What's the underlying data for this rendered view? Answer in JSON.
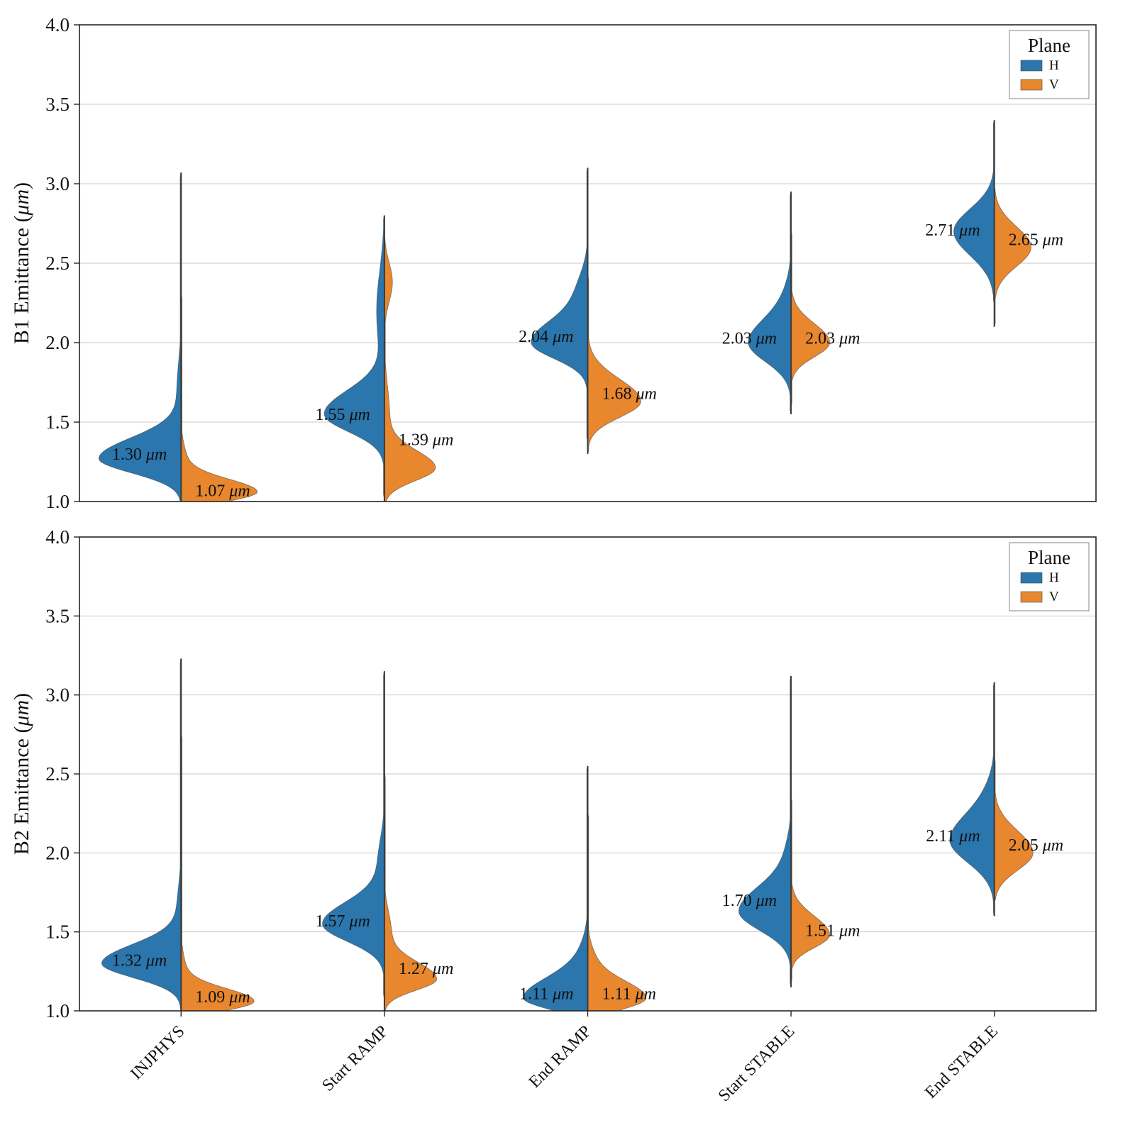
{
  "colors": {
    "H": "#2b76ad",
    "V": "#e8872e",
    "grid": "#c9c9c9",
    "axis": "#262626",
    "center_line": "#3a3a3a",
    "text": "#111111",
    "violin_edge": "#4a4a4a",
    "legend_border": "#9a9a9a"
  },
  "legend": {
    "title": "Plane",
    "entries": [
      {
        "label": "H",
        "color_key": "H"
      },
      {
        "label": "V",
        "color_key": "V"
      }
    ]
  },
  "chart_data": [
    {
      "type": "violin",
      "ylabel_prefix": "B1 Emittance (",
      "ylabel_unit": "μm",
      "ylabel_suffix": ")",
      "ylim": [
        1.0,
        4.0
      ],
      "yticks": [
        1.0,
        1.5,
        2.0,
        2.5,
        3.0,
        3.5,
        4.0
      ],
      "categories": [
        "INJPHYS",
        "Start RAMP",
        "End RAMP",
        "Start STABLE",
        "End STABLE"
      ],
      "violins": [
        {
          "category": "INJPHYS",
          "halves": [
            {
              "plane": "H",
              "label_value": "1.30",
              "label_unit": "μm",
              "mean": 1.3,
              "mode": 1.27,
              "sigma_low": 0.09,
              "sigma_high": 0.13,
              "min": 1.0,
              "max": 3.07,
              "width": 0.85,
              "bumps": [
                [
                  1.7,
                  0.18,
                  0.05
                ]
              ]
            },
            {
              "plane": "V",
              "label_value": "1.07",
              "label_unit": "μm",
              "mean": 1.07,
              "mode": 1.06,
              "sigma_low": 0.06,
              "sigma_high": 0.08,
              "min": 1.0,
              "max": 2.3,
              "width": 0.78,
              "bumps": [
                [
                  1.25,
                  0.1,
                  0.07
                ]
              ]
            }
          ]
        },
        {
          "category": "Start RAMP",
          "halves": [
            {
              "plane": "H",
              "label_value": "1.55",
              "label_unit": "μm",
              "mean": 1.55,
              "mode": 1.55,
              "sigma_low": 0.11,
              "sigma_high": 0.15,
              "min": 1.02,
              "max": 2.8,
              "width": 0.62,
              "bumps": [
                [
                  2.2,
                  0.25,
                  0.13
                ]
              ]
            },
            {
              "plane": "V",
              "label_value": "1.39",
              "label_unit": "μm",
              "mean": 1.39,
              "mode": 1.21,
              "sigma_low": 0.08,
              "sigma_high": 0.11,
              "min": 1.0,
              "max": 2.65,
              "width": 0.52,
              "bumps": [
                [
                  1.55,
                  0.18,
                  0.1
                ],
                [
                  2.38,
                  0.12,
                  0.16
                ]
              ]
            }
          ]
        },
        {
          "category": "End RAMP",
          "halves": [
            {
              "plane": "H",
              "label_value": "2.04",
              "label_unit": "μm",
              "mean": 2.04,
              "mode": 2.0,
              "sigma_low": 0.1,
              "sigma_high": 0.14,
              "min": 1.38,
              "max": 3.1,
              "width": 0.58,
              "bumps": [
                [
                  2.32,
                  0.13,
                  0.18
                ]
              ]
            },
            {
              "plane": "V",
              "label_value": "1.68",
              "label_unit": "μm",
              "mean": 1.68,
              "mode": 1.63,
              "sigma_low": 0.1,
              "sigma_high": 0.14,
              "min": 1.3,
              "max": 2.42,
              "width": 0.55,
              "bumps": []
            }
          ]
        },
        {
          "category": "Start STABLE",
          "halves": [
            {
              "plane": "H",
              "label_value": "2.03",
              "label_unit": "μm",
              "mean": 2.03,
              "mode": 2.0,
              "sigma_low": 0.12,
              "sigma_high": 0.15,
              "min": 1.55,
              "max": 2.95,
              "width": 0.44,
              "bumps": [
                [
                  2.3,
                  0.12,
                  0.1
                ]
              ]
            },
            {
              "plane": "V",
              "label_value": "2.03",
              "label_unit": "μm",
              "mean": 2.03,
              "mode": 2.0,
              "sigma_low": 0.09,
              "sigma_high": 0.12,
              "min": 1.6,
              "max": 2.7,
              "width": 0.4,
              "bumps": []
            }
          ]
        },
        {
          "category": "End STABLE",
          "halves": [
            {
              "plane": "H",
              "label_value": "2.71",
              "label_unit": "μm",
              "mean": 2.71,
              "mode": 2.7,
              "sigma_low": 0.15,
              "sigma_high": 0.14,
              "min": 2.25,
              "max": 3.4,
              "width": 0.42,
              "bumps": []
            },
            {
              "plane": "V",
              "label_value": "2.65",
              "label_unit": "μm",
              "mean": 2.65,
              "mode": 2.6,
              "sigma_low": 0.12,
              "sigma_high": 0.13,
              "min": 2.1,
              "max": 2.97,
              "width": 0.38,
              "bumps": []
            }
          ]
        }
      ]
    },
    {
      "type": "violin",
      "ylabel_prefix": "B2 Emittance (",
      "ylabel_unit": "μm",
      "ylabel_suffix": ")",
      "ylim": [
        1.0,
        4.0
      ],
      "yticks": [
        1.0,
        1.5,
        2.0,
        2.5,
        3.0,
        3.5,
        4.0
      ],
      "categories": [
        "INJPHYS",
        "Start RAMP",
        "End RAMP",
        "Start STABLE",
        "End STABLE"
      ],
      "violins": [
        {
          "category": "INJPHYS",
          "halves": [
            {
              "plane": "H",
              "label_value": "1.32",
              "label_unit": "μm",
              "mean": 1.32,
              "mode": 1.3,
              "sigma_low": 0.09,
              "sigma_high": 0.12,
              "min": 1.0,
              "max": 3.23,
              "width": 0.82,
              "bumps": [
                [
                  1.65,
                  0.15,
                  0.05
                ]
              ]
            },
            {
              "plane": "V",
              "label_value": "1.09",
              "label_unit": "μm",
              "mean": 1.09,
              "mode": 1.06,
              "sigma_low": 0.06,
              "sigma_high": 0.08,
              "min": 1.0,
              "max": 2.75,
              "width": 0.75,
              "bumps": [
                [
                  1.25,
                  0.1,
                  0.06
                ]
              ]
            }
          ]
        },
        {
          "category": "Start RAMP",
          "halves": [
            {
              "plane": "H",
              "label_value": "1.57",
              "label_unit": "μm",
              "mean": 1.57,
              "mode": 1.55,
              "sigma_low": 0.11,
              "sigma_high": 0.14,
              "min": 1.08,
              "max": 3.15,
              "width": 0.64,
              "bumps": [
                [
                  1.95,
                  0.15,
                  0.1
                ]
              ]
            },
            {
              "plane": "V",
              "label_value": "1.27",
              "label_unit": "μm",
              "mean": 1.27,
              "mode": 1.2,
              "sigma_low": 0.07,
              "sigma_high": 0.11,
              "min": 1.0,
              "max": 2.5,
              "width": 0.54,
              "bumps": [
                [
                  1.52,
                  0.12,
                  0.12
                ]
              ]
            }
          ]
        },
        {
          "category": "End RAMP",
          "halves": [
            {
              "plane": "H",
              "label_value": "1.11",
              "label_unit": "μm",
              "mean": 1.11,
              "mode": 1.08,
              "sigma_low": 0.07,
              "sigma_high": 0.13,
              "min": 1.0,
              "max": 2.55,
              "width": 0.66,
              "bumps": [
                [
                  1.35,
                  0.12,
                  0.1
                ]
              ]
            },
            {
              "plane": "V",
              "label_value": "1.11",
              "label_unit": "μm",
              "mean": 1.11,
              "mode": 1.08,
              "sigma_low": 0.07,
              "sigma_high": 0.11,
              "min": 1.0,
              "max": 2.25,
              "width": 0.6,
              "bumps": [
                [
                  1.32,
                  0.1,
                  0.1
                ]
              ]
            }
          ]
        },
        {
          "category": "Start STABLE",
          "halves": [
            {
              "plane": "H",
              "label_value": "1.70",
              "label_unit": "μm",
              "mean": 1.7,
              "mode": 1.63,
              "sigma_low": 0.12,
              "sigma_high": 0.16,
              "min": 1.15,
              "max": 3.12,
              "width": 0.54,
              "bumps": [
                [
                  2.0,
                  0.12,
                  0.08
                ]
              ]
            },
            {
              "plane": "V",
              "label_value": "1.51",
              "label_unit": "μm",
              "mean": 1.51,
              "mode": 1.48,
              "sigma_low": 0.08,
              "sigma_high": 0.12,
              "min": 1.18,
              "max": 2.35,
              "width": 0.4,
              "bumps": []
            }
          ]
        },
        {
          "category": "End STABLE",
          "halves": [
            {
              "plane": "H",
              "label_value": "2.11",
              "label_unit": "μm",
              "mean": 2.11,
              "mode": 2.08,
              "sigma_low": 0.14,
              "sigma_high": 0.17,
              "min": 1.6,
              "max": 3.08,
              "width": 0.46,
              "bumps": [
                [
                  2.4,
                  0.12,
                  0.08
                ]
              ]
            },
            {
              "plane": "V",
              "label_value": "2.05",
              "label_unit": "μm",
              "mean": 2.05,
              "mode": 2.0,
              "sigma_low": 0.11,
              "sigma_high": 0.14,
              "min": 1.7,
              "max": 2.6,
              "width": 0.4,
              "bumps": []
            }
          ]
        }
      ]
    }
  ]
}
